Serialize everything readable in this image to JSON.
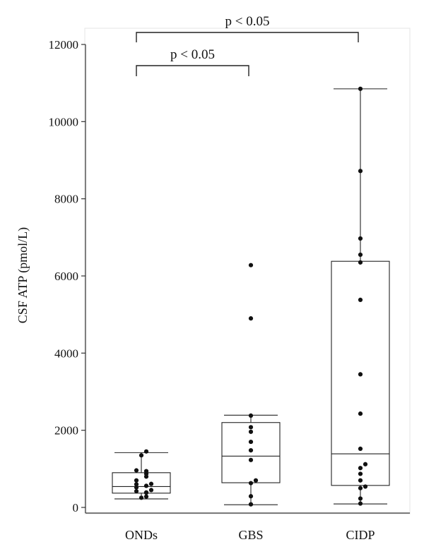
{
  "chart_data": {
    "type": "box",
    "title": "",
    "xlabel": "",
    "ylabel": "CSF ATP (pmol/L)",
    "ylim": [
      0,
      12000
    ],
    "yticks": [
      0,
      2000,
      4000,
      6000,
      8000,
      10000,
      12000
    ],
    "yticklabels": [
      "0",
      "2000",
      "4000",
      "6000",
      "8000",
      "10000",
      "12000"
    ],
    "categories": [
      "ONDs",
      "GBS",
      "CIDP"
    ],
    "boxes": [
      {
        "category": "ONDs",
        "whisker_low": 220,
        "q1": 370,
        "median": 540,
        "q3": 900,
        "whisker_high": 1420,
        "points": [
          250,
          280,
          380,
          390,
          420,
          450,
          520,
          560,
          600,
          610,
          700,
          800,
          870,
          940,
          960,
          1350,
          1450
        ]
      },
      {
        "category": "GBS",
        "whisker_low": 70,
        "q1": 640,
        "median": 1330,
        "q3": 2200,
        "whisker_high": 2390,
        "points": [
          80,
          290,
          630,
          700,
          1230,
          1480,
          1700,
          1960,
          2080,
          2380,
          4900,
          6280
        ]
      },
      {
        "category": "CIDP",
        "whisker_low": 90,
        "q1": 570,
        "median": 1390,
        "q3": 6380,
        "whisker_high": 10850,
        "points": [
          100,
          230,
          500,
          540,
          700,
          870,
          1020,
          1120,
          1520,
          2430,
          3450,
          5380,
          6350,
          6550,
          6970,
          8720,
          10850
        ]
      }
    ],
    "significance": [
      {
        "from": "ONDs",
        "to": "GBS",
        "label": "p < 0.05",
        "y": 11500
      },
      {
        "from": "ONDs",
        "to": "CIDP",
        "label": "p < 0.05",
        "y": 12300
      }
    ],
    "grid": false,
    "legend": "none"
  }
}
